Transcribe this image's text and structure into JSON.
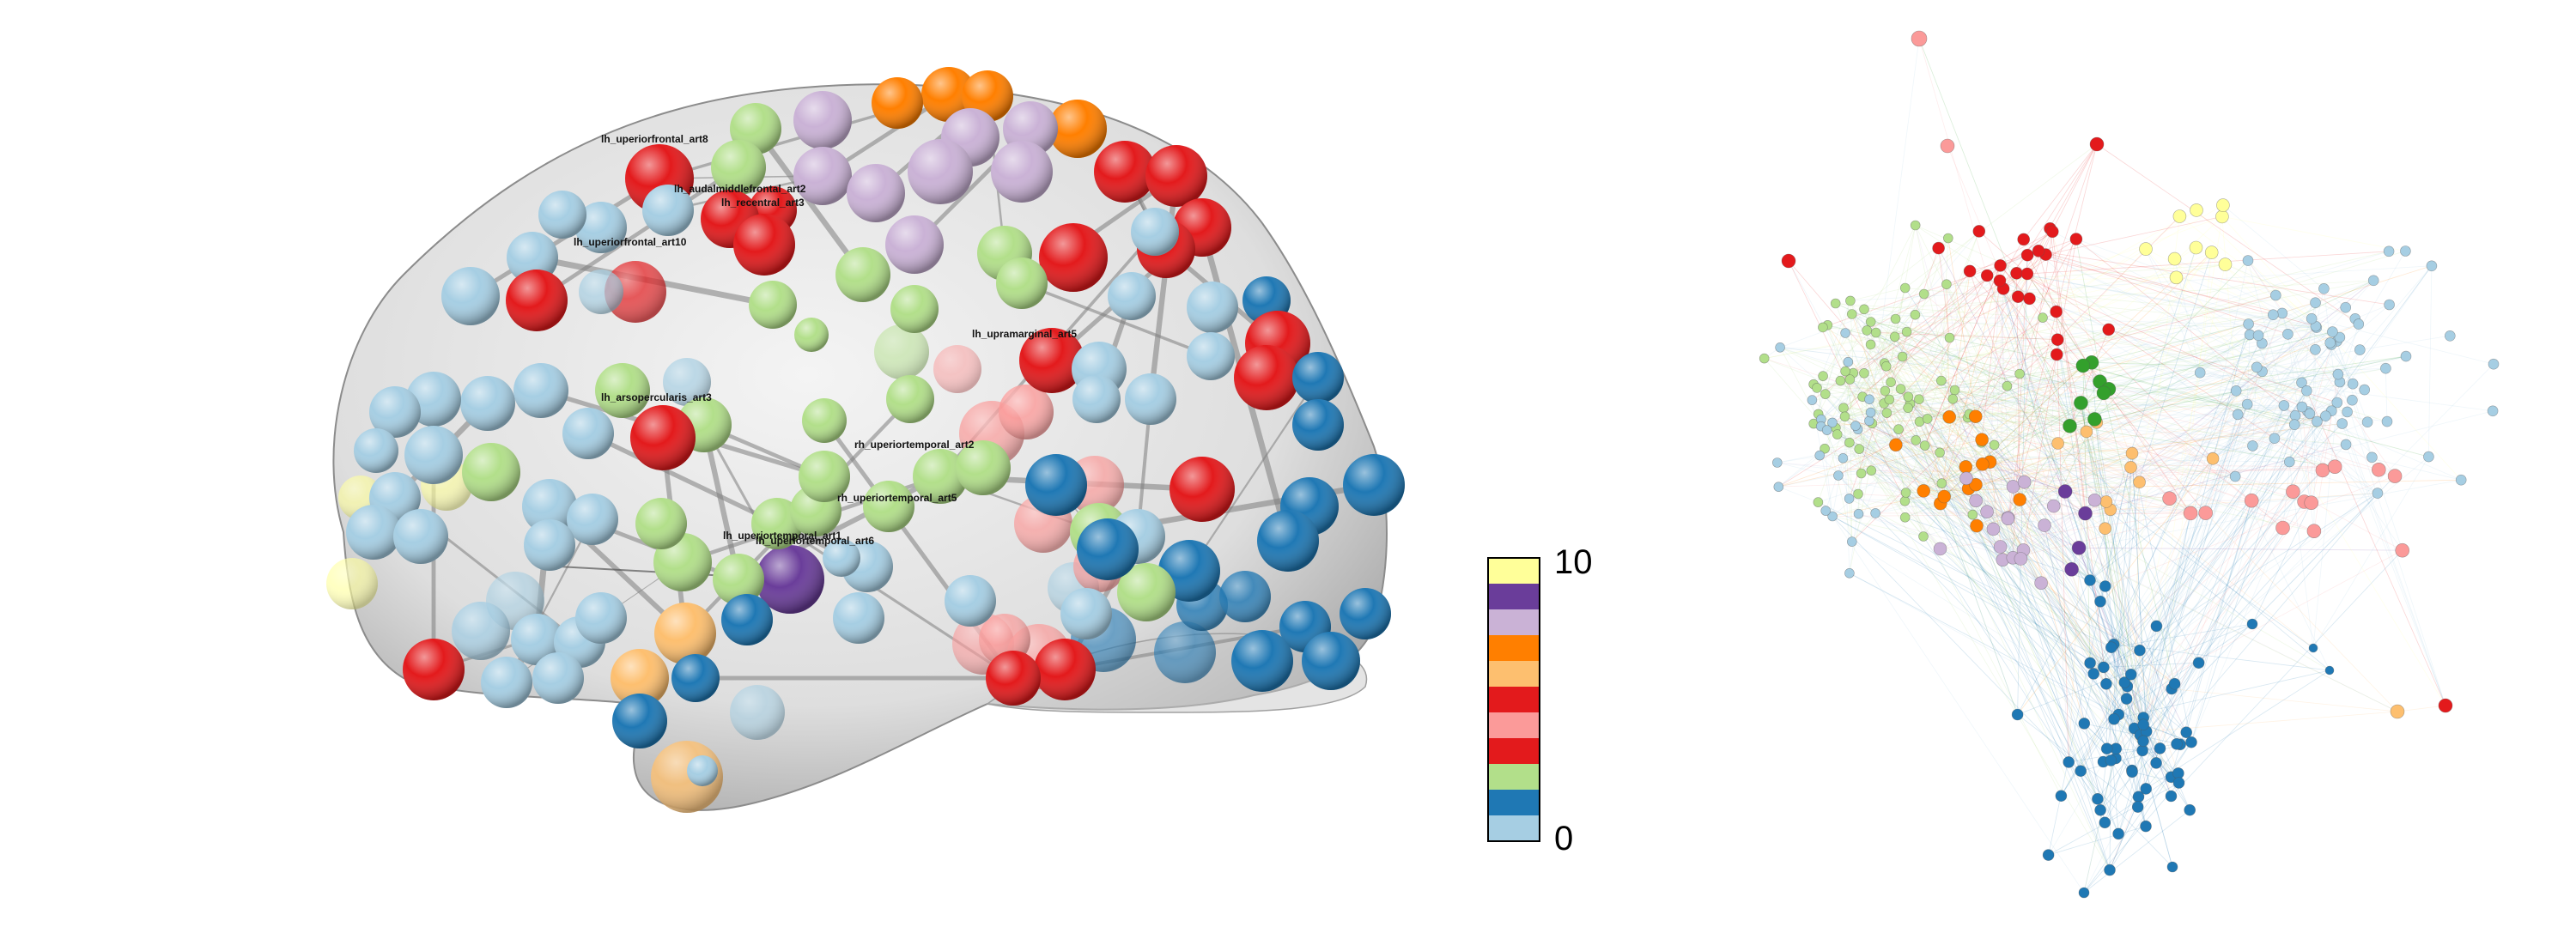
{
  "brain_labels": [
    "lh_uperiorfrontal_art8",
    "lh_audalmiddlefrontal_art2",
    "lh_recentral_art3",
    "lh_uperiorfrontal_art10",
    "lh_upramarginal_art5",
    "lh_arsopercularis_art3",
    "rh_uperiortemporal_art2",
    "rh_uperiortemporal_art5",
    "lh_uperiortemporal_art1",
    "lh_uperiortemporal_art6"
  ],
  "colorbar": {
    "max_label": "10",
    "min_label": "0",
    "colors": [
      "#ffff99",
      "#6a3d9a",
      "#cab2d6",
      "#ff7f00",
      "#fdbf6f",
      "#e31a1c",
      "#fb9a99",
      "#e31a1c",
      "#b2df8a",
      "#1f78b4",
      "#a6cee3"
    ]
  },
  "module_colors": {
    "light_blue": "#a6cee3",
    "dark_blue": "#1f78b4",
    "light_green": "#b2df8a",
    "dark_green": "#33a02c",
    "pink": "#fb9a99",
    "red": "#e31a1c",
    "light_orange": "#fdbf6f",
    "orange": "#ff7f00",
    "lavender": "#cab2d6",
    "purple": "#6a3d9a",
    "yellow": "#ffff99"
  }
}
